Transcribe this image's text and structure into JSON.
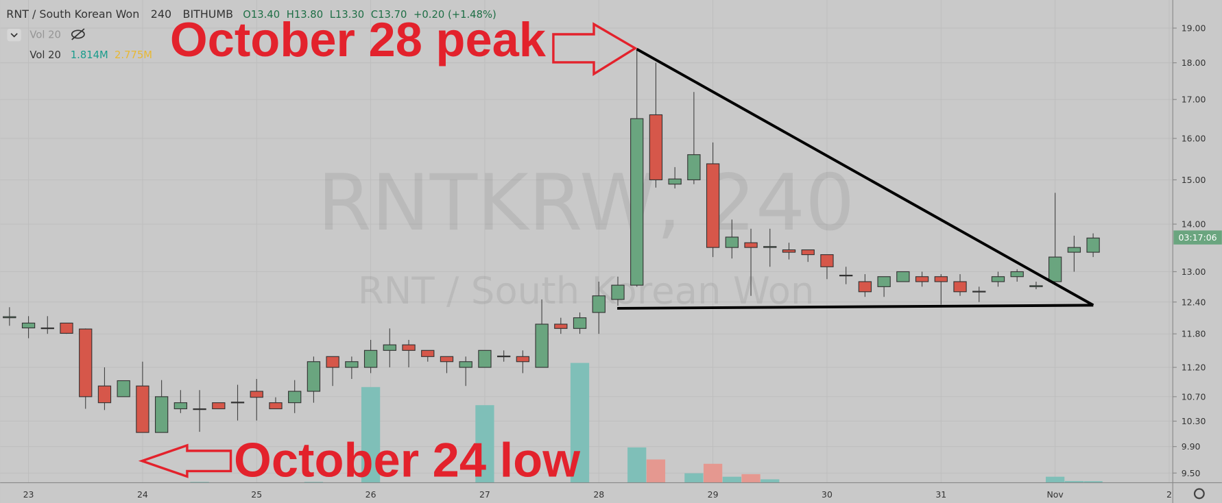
{
  "header": {
    "symbol": "RNT / South Korean Won",
    "interval": "240",
    "exchange": "BITHUMB",
    "ohlc": [
      "O13.40",
      "H13.80",
      "L13.30",
      "C13.70"
    ],
    "change": "+0.20 (+1.48%)",
    "legend_hidden": "Vol 20",
    "legend": "Vol 20",
    "legend_values": [
      "1.814M",
      "2.775M"
    ],
    "countdown": "03:17:06"
  },
  "watermark": {
    "symbol": "RNTKRW, 240",
    "name": "RNT / South Korean Won"
  },
  "annotations": {
    "peak": "October 28 peak",
    "low": "October 24 low"
  },
  "chart_data": {
    "type": "candlestick",
    "log_scale": true,
    "up_color": "#6aa57f",
    "down_color": "#d6574a",
    "categories": [
      null,
      "23",
      null,
      null,
      null,
      null,
      null,
      "24",
      null,
      null,
      null,
      null,
      null,
      "25",
      null,
      null,
      null,
      null,
      null,
      "26",
      null,
      null,
      null,
      null,
      null,
      "27",
      null,
      null,
      null,
      null,
      null,
      "28",
      null,
      null,
      null,
      null,
      null,
      "29",
      null,
      null,
      null,
      null,
      null,
      "30",
      null,
      null,
      null,
      null,
      null,
      "31",
      null,
      null,
      null,
      null,
      null,
      "Nov",
      null,
      null,
      null,
      null,
      null,
      "2"
    ],
    "open": [
      12.1,
      11.91,
      11.91,
      12.0,
      11.89,
      10.88,
      10.7,
      10.88,
      10.12,
      10.5,
      10.5,
      10.6,
      10.6,
      10.79,
      10.6,
      10.6,
      10.79,
      11.39,
      11.2,
      11.2,
      11.5,
      11.6,
      11.5,
      11.39,
      11.2,
      11.2,
      11.39,
      11.39,
      11.2,
      11.98,
      11.9,
      12.2,
      12.45,
      12.73,
      16.6,
      14.9,
      15.0,
      15.38,
      13.5,
      13.6,
      13.5,
      13.45,
      13.45,
      13.35,
      12.93,
      12.8,
      12.7,
      12.8,
      12.9,
      12.9,
      12.8,
      12.6,
      12.8,
      12.9,
      12.7,
      12.8,
      13.4,
      13.4,
      null,
      null,
      null,
      null
    ],
    "high": [
      12.3,
      12.13,
      12.13,
      12.0,
      11.9,
      11.2,
      10.97,
      11.3,
      10.98,
      10.81,
      10.81,
      10.6,
      10.9,
      11.0,
      10.69,
      10.98,
      11.39,
      11.39,
      11.39,
      11.69,
      11.9,
      11.69,
      11.5,
      11.39,
      11.39,
      11.5,
      11.5,
      11.5,
      12.45,
      12.1,
      12.2,
      12.8,
      12.9,
      18.39,
      18.0,
      15.3,
      17.2,
      15.9,
      14.1,
      13.9,
      13.9,
      13.6,
      13.45,
      13.35,
      13.1,
      12.95,
      12.9,
      13.0,
      13.0,
      12.95,
      12.95,
      12.7,
      13.0,
      13.05,
      12.8,
      14.7,
      13.75,
      13.8,
      null,
      null,
      null,
      null
    ],
    "low": [
      11.95,
      11.72,
      11.8,
      11.8,
      10.5,
      10.48,
      10.7,
      10.12,
      10.12,
      10.43,
      10.13,
      10.5,
      10.31,
      10.31,
      10.5,
      10.43,
      10.6,
      10.88,
      11.0,
      11.1,
      11.2,
      11.2,
      11.3,
      11.1,
      10.88,
      11.2,
      11.3,
      11.1,
      11.2,
      11.8,
      11.8,
      11.8,
      12.33,
      12.7,
      14.82,
      14.8,
      14.9,
      13.3,
      13.27,
      12.52,
      13.1,
      13.25,
      13.2,
      12.85,
      12.75,
      12.5,
      12.5,
      12.8,
      12.7,
      12.35,
      12.52,
      12.4,
      12.7,
      12.8,
      12.65,
      12.8,
      13.0,
      13.3,
      null,
      null,
      null,
      null
    ],
    "close": [
      12.12,
      12.0,
      11.9,
      11.81,
      10.7,
      10.6,
      10.97,
      10.12,
      10.7,
      10.6,
      10.5,
      10.5,
      10.61,
      10.69,
      10.5,
      10.79,
      11.3,
      11.2,
      11.3,
      11.5,
      11.6,
      11.5,
      11.39,
      11.3,
      11.3,
      11.5,
      11.4,
      11.3,
      11.98,
      11.9,
      12.1,
      12.52,
      12.73,
      16.5,
      15.0,
      15.02,
      15.6,
      13.5,
      13.72,
      13.5,
      13.52,
      13.4,
      13.35,
      13.1,
      12.92,
      12.6,
      12.9,
      13.0,
      12.8,
      12.8,
      12.6,
      12.61,
      12.9,
      13.0,
      12.72,
      13.3,
      13.5,
      13.7,
      null,
      null,
      null,
      null
    ],
    "ylim": [
      9.38,
      19.85
    ],
    "yticks": [
      {
        "value": 19,
        "label": "19.00"
      },
      {
        "value": 18,
        "label": "18.00"
      },
      {
        "value": 17,
        "label": "17.00"
      },
      {
        "value": 16,
        "label": "16.00"
      },
      {
        "value": 15,
        "label": "15.00"
      },
      {
        "value": 14,
        "label": "14.00"
      },
      {
        "value": 13,
        "label": "13.00"
      },
      {
        "value": 12.4,
        "label": "12.40"
      },
      {
        "value": 11.8,
        "label": "11.80"
      },
      {
        "value": 11.2,
        "label": "11.20"
      },
      {
        "value": 10.7,
        "label": "10.70"
      },
      {
        "value": 10.3,
        "label": "10.30"
      },
      {
        "value": 9.9,
        "label": "9.90"
      },
      {
        "value": 9.5,
        "label": "9.50"
      }
    ],
    "volume": {
      "up_color": "#7fbfb8",
      "down_color": "#e59890",
      "ylim": [
        0,
        560
      ],
      "values": [
        0.3,
        0.3,
        0.3,
        0.3,
        0.3,
        0.3,
        0.3,
        0.3,
        0.3,
        0.3,
        1,
        0.3,
        0.3,
        0.3,
        0.3,
        0.3,
        1,
        0.3,
        0.3,
        111,
        0.3,
        0.3,
        0.3,
        0.3,
        0.3,
        90,
        0.3,
        0.3,
        0.3,
        0.3,
        139,
        0.3,
        0.3,
        41,
        27,
        0.3,
        11,
        22,
        7,
        10,
        4,
        0.3,
        0.3,
        0.3,
        0.3,
        0.3,
        0.3,
        0.3,
        0.3,
        0.3,
        0.3,
        0.3,
        0.3,
        0.3,
        0.3,
        7,
        2,
        1.814,
        null,
        null,
        null,
        null
      ]
    }
  }
}
